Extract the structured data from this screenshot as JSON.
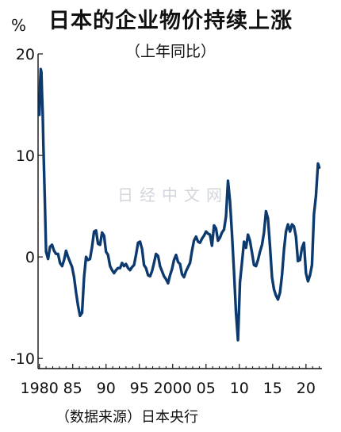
{
  "header": {
    "title": "日本的企业物价持续上涨",
    "subtitle": "（上年同比）",
    "unit": "%"
  },
  "footer": {
    "source": "（数据来源）日本央行"
  },
  "watermark": "日经中文网",
  "colors": {
    "line": "#0d3a6e",
    "axis": "#111111",
    "background": "#ffffff"
  },
  "chart_data": {
    "type": "line",
    "title": "日本的企业物价持续上涨",
    "subtitle": "（上年同比）",
    "ylabel": "%",
    "xlabel": "",
    "xlim": [
      1979.8,
      2022.4
    ],
    "ylim": [
      -11,
      20
    ],
    "x_ticks": [
      {
        "value": 1980,
        "label": "1980"
      },
      {
        "value": 1985,
        "label": "85"
      },
      {
        "value": 1990,
        "label": "90"
      },
      {
        "value": 1995,
        "label": "95"
      },
      {
        "value": 2000,
        "label": "2000"
      },
      {
        "value": 2005,
        "label": "05"
      },
      {
        "value": 2010,
        "label": "10"
      },
      {
        "value": 2015,
        "label": "15"
      },
      {
        "value": 2020,
        "label": "20"
      }
    ],
    "y_ticks": [
      {
        "value": 20,
        "label": "20"
      },
      {
        "value": 10,
        "label": "10"
      },
      {
        "value": 0,
        "label": "0"
      },
      {
        "value": -10,
        "label": "-10"
      }
    ],
    "grid": false,
    "legend": "none",
    "series": [
      {
        "x": [
          1980.0,
          1980.1,
          1980.2,
          1980.3,
          1980.4,
          1980.5,
          1980.6,
          1980.8,
          1981.0,
          1981.3,
          1981.6,
          1981.9,
          1982.2,
          1982.5,
          1982.8,
          1983.1,
          1983.4,
          1983.7,
          1984.0,
          1984.3,
          1984.6,
          1984.9,
          1985.2,
          1985.5,
          1985.8,
          1986.1,
          1986.4,
          1986.7,
          1987.0,
          1987.3,
          1987.6,
          1987.9,
          1988.2,
          1988.5,
          1988.8,
          1989.1,
          1989.4,
          1989.7,
          1990.0,
          1990.3,
          1990.6,
          1990.9,
          1991.2,
          1991.5,
          1991.8,
          1992.1,
          1992.4,
          1992.7,
          1993.0,
          1993.3,
          1993.6,
          1993.9,
          1994.2,
          1994.5,
          1994.8,
          1995.1,
          1995.4,
          1995.7,
          1996.0,
          1996.3,
          1996.6,
          1996.9,
          1997.2,
          1997.5,
          1997.8,
          1998.1,
          1998.4,
          1998.7,
          1999.0,
          1999.3,
          1999.6,
          1999.9,
          2000.2,
          2000.5,
          2000.8,
          2001.1,
          2001.4,
          2001.7,
          2002.0,
          2002.3,
          2002.6,
          2002.9,
          2003.2,
          2003.5,
          2003.8,
          2004.1,
          2004.4,
          2004.7,
          2005.0,
          2005.3,
          2005.6,
          2005.9,
          2006.2,
          2006.5,
          2006.8,
          2007.1,
          2007.4,
          2007.7,
          2008.0,
          2008.3,
          2008.6,
          2008.9,
          2009.2,
          2009.5,
          2009.8,
          2010.1,
          2010.4,
          2010.7,
          2011.0,
          2011.3,
          2011.6,
          2011.9,
          2012.2,
          2012.5,
          2012.8,
          2013.1,
          2013.4,
          2013.7,
          2014.0,
          2014.3,
          2014.6,
          2014.9,
          2015.2,
          2015.5,
          2015.8,
          2016.1,
          2016.4,
          2016.7,
          2017.0,
          2017.3,
          2017.6,
          2017.9,
          2018.2,
          2018.5,
          2018.8,
          2019.1,
          2019.4,
          2019.7,
          2020.0,
          2020.3,
          2020.6,
          2020.9,
          2021.2,
          2021.5,
          2021.8,
          2022.0
        ],
        "values": [
          14,
          17,
          18.5,
          18.2,
          16,
          14,
          11,
          6,
          0.5,
          -0.2,
          1,
          1.2,
          0.6,
          0.3,
          0.3,
          -0.6,
          -0.9,
          -0.3,
          0.6,
          0,
          -0.5,
          -1,
          -2,
          -3.5,
          -4.8,
          -5.8,
          -5.5,
          -2,
          0,
          -0.3,
          -0.2,
          1,
          2.5,
          2.6,
          1.3,
          1.2,
          2.4,
          2.1,
          0.5,
          0.2,
          -0.9,
          -1.3,
          -1.6,
          -1.3,
          -1.1,
          -1.1,
          -0.6,
          -0.9,
          -0.7,
          -1.1,
          -1.3,
          -1.0,
          -0.8,
          0.2,
          1.4,
          1.5,
          0.8,
          -0.8,
          -1.1,
          -1.8,
          -1.9,
          -1.4,
          -0.6,
          0.3,
          0.1,
          -0.9,
          -1.4,
          -1.9,
          -2.2,
          -2.6,
          -1.8,
          -1.2,
          -0.3,
          0.2,
          -0.5,
          -0.7,
          -1.7,
          -2.0,
          -1.4,
          -1.0,
          -0.6,
          0.6,
          1.6,
          2.0,
          1.5,
          1.4,
          1.8,
          2.1,
          2.5,
          2.3,
          2.2,
          1.1,
          3.1,
          2.8,
          1.6,
          1.9,
          2.4,
          2.7,
          4.0,
          7.5,
          5.5,
          2.3,
          -1.5,
          -5.5,
          -8.2,
          -2.5,
          -0.5,
          1.5,
          0.9,
          2.2,
          1.6,
          0.4,
          -0.8,
          -0.9,
          -0.3,
          0.5,
          1.2,
          2.4,
          4.5,
          3.8,
          1.0,
          -2.0,
          -3.2,
          -3.8,
          -4.2,
          -3.5,
          -1.8,
          0.7,
          2.5,
          3.2,
          2.5,
          3.2,
          3.0,
          2.0,
          -0.4,
          -0.3,
          0.9,
          1.4,
          -1.6,
          -2.4,
          -1.8,
          -0.8,
          4.2,
          6.0,
          9.2,
          8.8
        ]
      }
    ]
  }
}
